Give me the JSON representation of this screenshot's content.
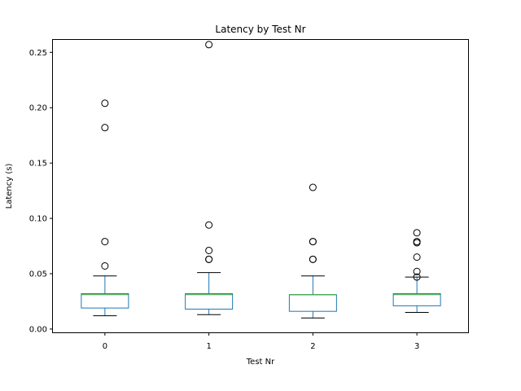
{
  "chart_data": {
    "type": "box",
    "title": "Latency by Test Nr",
    "xlabel": "Test Nr",
    "ylabel": "Latency (s)",
    "ylim": [
      -0.003,
      0.262
    ],
    "xlim": [
      0.5,
      4.5
    ],
    "yticks": [
      0.0,
      0.05,
      0.1,
      0.15,
      0.2,
      0.25
    ],
    "ytick_labels": [
      "0.00",
      "0.05",
      "0.10",
      "0.15",
      "0.20",
      "0.25"
    ],
    "categories": [
      "0",
      "1",
      "2",
      "3"
    ],
    "grid": false,
    "colors": {
      "box": "#1f77b4",
      "median": "#2ca02c",
      "whisker": "#1f77b4",
      "cap": "#000000",
      "flier": "#000000"
    },
    "boxes": [
      {
        "category": "0",
        "whisker_low": 0.012,
        "q1": 0.019,
        "median": 0.031,
        "q3": 0.032,
        "whisker_high": 0.048,
        "outliers": [
          0.057,
          0.079,
          0.182,
          0.204
        ]
      },
      {
        "category": "1",
        "whisker_low": 0.013,
        "q1": 0.018,
        "median": 0.031,
        "q3": 0.032,
        "whisker_high": 0.051,
        "outliers": [
          0.063,
          0.063,
          0.071,
          0.094,
          0.257
        ]
      },
      {
        "category": "2",
        "whisker_low": 0.01,
        "q1": 0.016,
        "median": 0.031,
        "q3": 0.031,
        "whisker_high": 0.048,
        "outliers": [
          0.063,
          0.063,
          0.079,
          0.079,
          0.128
        ]
      },
      {
        "category": "3",
        "whisker_low": 0.015,
        "q1": 0.021,
        "median": 0.031,
        "q3": 0.032,
        "whisker_high": 0.047,
        "outliers": [
          0.047,
          0.052,
          0.065,
          0.078,
          0.079,
          0.087
        ]
      }
    ]
  }
}
